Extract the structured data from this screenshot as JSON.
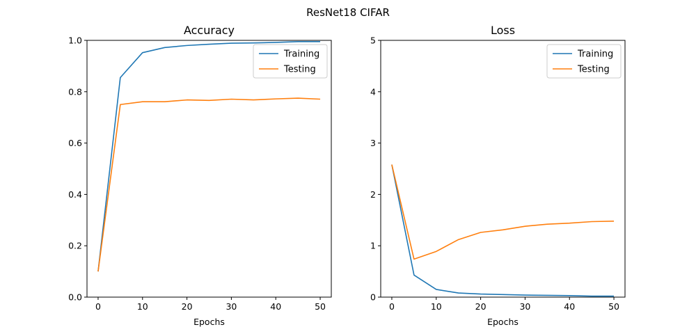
{
  "figure": {
    "suptitle": "ResNet18 CIFAR"
  },
  "chart_data": [
    {
      "type": "line",
      "title": "Accuracy",
      "xlabel": "Epochs",
      "ylabel": "",
      "xlim": [
        -2.5,
        52.5
      ],
      "ylim": [
        0,
        1
      ],
      "xticks": [
        0,
        10,
        20,
        30,
        40,
        50
      ],
      "yticks": [
        0.0,
        0.2,
        0.4,
        0.6,
        0.8,
        1.0
      ],
      "ytick_labels": [
        "0.0",
        "0.2",
        "0.4",
        "0.6",
        "0.8",
        "1.0"
      ],
      "legend": "top-right",
      "grid": false,
      "x": [
        0,
        5,
        10,
        15,
        20,
        25,
        30,
        35,
        40,
        45,
        50
      ],
      "series": [
        {
          "name": "Training",
          "color": "#1f77b4",
          "values": [
            0.1,
            0.855,
            0.952,
            0.972,
            0.98,
            0.985,
            0.989,
            0.99,
            0.992,
            0.995,
            0.995
          ]
        },
        {
          "name": "Testing",
          "color": "#ff7f0e",
          "values": [
            0.1,
            0.75,
            0.761,
            0.761,
            0.768,
            0.766,
            0.771,
            0.768,
            0.772,
            0.775,
            0.771
          ]
        }
      ]
    },
    {
      "type": "line",
      "title": "Loss",
      "xlabel": "Epochs",
      "ylabel": "",
      "xlim": [
        -2.5,
        52.5
      ],
      "ylim": [
        0,
        5
      ],
      "xticks": [
        0,
        10,
        20,
        30,
        40,
        50
      ],
      "yticks": [
        0,
        1,
        2,
        3,
        4,
        5
      ],
      "ytick_labels": [
        "0",
        "1",
        "2",
        "3",
        "4",
        "5"
      ],
      "legend": "top-right",
      "grid": false,
      "x": [
        0,
        5,
        10,
        15,
        20,
        25,
        30,
        35,
        40,
        45,
        50
      ],
      "series": [
        {
          "name": "Training",
          "color": "#1f77b4",
          "values": [
            2.58,
            0.43,
            0.15,
            0.08,
            0.06,
            0.05,
            0.04,
            0.035,
            0.03,
            0.02,
            0.02
          ]
        },
        {
          "name": "Testing",
          "color": "#ff7f0e",
          "values": [
            2.58,
            0.74,
            0.89,
            1.12,
            1.26,
            1.31,
            1.38,
            1.42,
            1.44,
            1.47,
            1.48
          ]
        }
      ]
    }
  ]
}
